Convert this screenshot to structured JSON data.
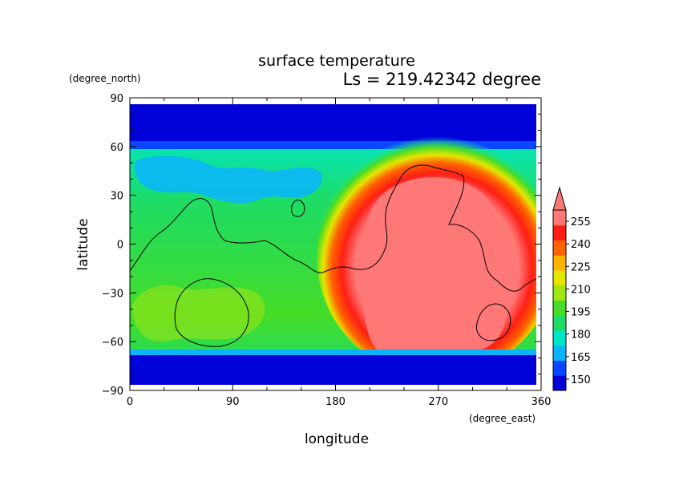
{
  "chart_data": {
    "type": "heatmap",
    "title": "surface temperature",
    "subtitle": "Ls = 219.42342 degree",
    "xlabel": "longitude",
    "ylabel": "latitude",
    "x_units": "(degree_east)",
    "y_units": "(degree_north)",
    "xlim": [
      0,
      360
    ],
    "ylim": [
      -90,
      90
    ],
    "x_ticks": [
      "0",
      "90",
      "180",
      "270",
      "360"
    ],
    "y_ticks": [
      "90",
      "60",
      "30",
      "0",
      "−30",
      "−60",
      "−90"
    ],
    "colorbar": {
      "levels": [
        150,
        165,
        180,
        195,
        210,
        225,
        240,
        255
      ],
      "labels": [
        "150",
        "165",
        "180",
        "195",
        "210",
        "225",
        "240",
        "255"
      ],
      "colors": [
        "#0000d8",
        "#0a46ff",
        "#0ab4ff",
        "#00e6c8",
        "#1edc64",
        "#46dc28",
        "#a0e614",
        "#e6e600",
        "#ffb400",
        "#ff6400",
        "#ff1e14",
        "#ff7878"
      ],
      "extend": "max"
    },
    "regions": [
      {
        "name": "south-polar-cap",
        "value": 145
      },
      {
        "name": "north-polar-cap",
        "value": 147
      },
      {
        "name": "eastern-hemisphere-warm-region",
        "value": 265
      },
      {
        "name": "western-temperate-band",
        "value": 192
      }
    ],
    "grid": false
  }
}
